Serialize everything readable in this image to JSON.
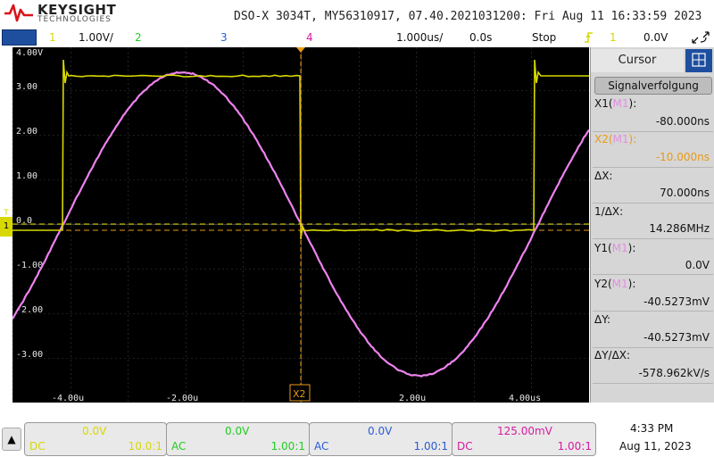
{
  "header": {
    "brand": "KEYSIGHT",
    "brand_sub": "TECHNOLOGIES",
    "title": "DSO-X 3034T, MY56310917, 07.40.2021031200: Fri Aug 11 16:33:59 2023"
  },
  "status_bar": {
    "ch1_num": "1",
    "ch1_scale": "1.00V/",
    "ch2_num": "2",
    "ch3_num": "3",
    "ch4_num": "4",
    "timebase": "1.000us/",
    "delay": "0.0s",
    "run_state": "Stop",
    "trigger_icon": "trigger-edge-icon",
    "trigger_source": "1",
    "trigger_level": "0.0V"
  },
  "plot": {
    "y_ticks": [
      "4.00V",
      "3.00",
      "2.00",
      "1.00",
      "0.0",
      "-1.00",
      "-2.00",
      "-3.00"
    ],
    "x_ticks": [
      "-4.00u",
      "-2.00u",
      "2.00u",
      "4.00us"
    ],
    "cursor_label": "X2",
    "ch1_marker": "1",
    "trig_marker": "T"
  },
  "panel": {
    "tab": "Cursor",
    "mode": "Signalverfolgung",
    "x1_label": "X1(",
    "x1_src": "M1",
    "x1_close": "):",
    "x1_value": "-80.000ns",
    "x2_label": "X2(",
    "x2_src": "M1",
    "x2_close": "):",
    "x2_value": "-10.000ns",
    "dx_label": "ΔX:",
    "dx_value": "70.000ns",
    "invdx_label": "1/ΔX:",
    "invdx_value": "14.286MHz",
    "y1_label": "Y1(",
    "y1_src": "M1",
    "y1_close": "):",
    "y1_value": "0.0V",
    "y2_label": "Y2(",
    "y2_src": "M1",
    "y2_close": "):",
    "y2_value": "-40.5273mV",
    "dy_label": "ΔY:",
    "dy_value": "-40.5273mV",
    "dydx_label": "ΔY/ΔX:",
    "dydx_value": "-578.962kV/s"
  },
  "channels": [
    {
      "offset": "0.0V",
      "coupling": "DC",
      "probe": "10.0:1",
      "color": "#d8d800"
    },
    {
      "offset": "0.0V",
      "coupling": "AC",
      "probe": "1.00:1",
      "color": "#22cc22"
    },
    {
      "offset": "0.0V",
      "coupling": "AC",
      "probe": "1.00:1",
      "color": "#2a5bd7"
    },
    {
      "offset": "125.00mV",
      "coupling": "DC",
      "probe": "1.00:1",
      "color": "#d81a9e"
    }
  ],
  "clock": {
    "time": "4:33 PM",
    "date": "Aug 11, 2023"
  },
  "colors": {
    "ch1": "#d8d800",
    "ch2": "#22cc22",
    "ch3": "#2a5bd7",
    "ch4": "#d81a9e",
    "math": "#ee82ee",
    "cursor": "#e89a17",
    "grid": "#3a3a3a"
  }
}
